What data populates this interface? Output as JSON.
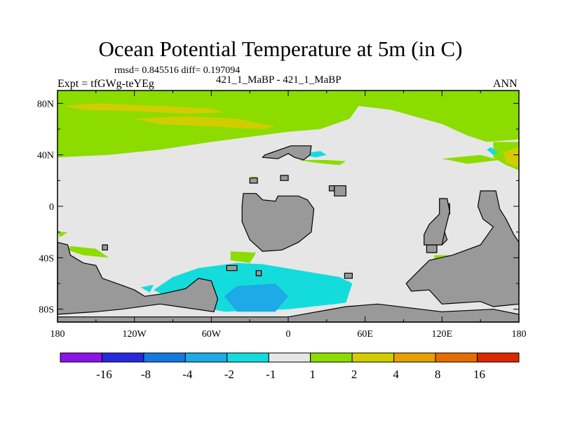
{
  "colors": {
    "land": "#999999",
    "near_zero": "#e6e6e6",
    "palette": [
      "#8c14e6",
      "#2828dc",
      "#1478dc",
      "#1eaae6",
      "#14dcdc",
      "#e6e6e6",
      "#8cdc00",
      "#d2cd00",
      "#e6a000",
      "#e66e00",
      "#dc2800"
    ]
  },
  "chart_data": {
    "type": "heatmap",
    "title": "Ocean Potential Temperature at 5m (in C)",
    "stats_line": "rmsd= 0.845516 diff= 0.197094",
    "subtitle": "421_1_MaBP - 421_1_MaBP",
    "left_label": "Expt = tfGWg-teYEg",
    "right_label": "ANN",
    "x_ticks": [
      {
        "value": -180,
        "label": "180"
      },
      {
        "value": -120,
        "label": "120W"
      },
      {
        "value": -60,
        "label": "60W"
      },
      {
        "value": 0,
        "label": "0"
      },
      {
        "value": 60,
        "label": "60E"
      },
      {
        "value": 120,
        "label": "120E"
      },
      {
        "value": 180,
        "label": "180"
      }
    ],
    "y_ticks": [
      {
        "value": 80,
        "label": "80N"
      },
      {
        "value": 40,
        "label": "40N"
      },
      {
        "value": 0,
        "label": "0"
      },
      {
        "value": -40,
        "label": "40S"
      },
      {
        "value": -80,
        "label": "80S"
      }
    ],
    "xlim": [
      -180,
      180
    ],
    "ylim": [
      -90,
      90
    ],
    "colorbar_levels": [
      "-16",
      "-8",
      "-4",
      "-2",
      "-1",
      "1",
      "2",
      "4",
      "8",
      "16"
    ],
    "regions": [
      {
        "name": "northern-band",
        "color_index": 6,
        "poly": [
          [
            -180,
            90
          ],
          [
            180,
            90
          ],
          [
            180,
            52
          ],
          [
            155,
            50
          ],
          [
            140,
            55
          ],
          [
            120,
            64
          ],
          [
            80,
            75
          ],
          [
            55,
            78
          ],
          [
            48,
            68
          ],
          [
            25,
            60
          ],
          [
            0,
            58
          ],
          [
            -30,
            54
          ],
          [
            -60,
            50
          ],
          [
            -100,
            44
          ],
          [
            -140,
            40
          ],
          [
            -180,
            38
          ]
        ]
      },
      {
        "name": "north-pacific-warm-1",
        "color_index": 7,
        "poly": [
          [
            -175,
            78
          ],
          [
            -150,
            80
          ],
          [
            -100,
            78
          ],
          [
            -60,
            76
          ],
          [
            -50,
            73
          ],
          [
            -80,
            72
          ],
          [
            -120,
            74
          ],
          [
            -160,
            75
          ]
        ]
      },
      {
        "name": "north-pacific-warm-2",
        "color_index": 7,
        "poly": [
          [
            -120,
            68
          ],
          [
            -80,
            70
          ],
          [
            -40,
            68
          ],
          [
            -10,
            62
          ],
          [
            -20,
            60
          ],
          [
            -60,
            62
          ],
          [
            -100,
            64
          ]
        ]
      },
      {
        "name": "east-margin-green",
        "color_index": 6,
        "poly": [
          [
            160,
            50
          ],
          [
            180,
            50
          ],
          [
            180,
            28
          ],
          [
            170,
            32
          ],
          [
            160,
            38
          ]
        ]
      },
      {
        "name": "east-margin-yellow",
        "color_index": 7,
        "poly": [
          [
            168,
            42
          ],
          [
            180,
            46
          ],
          [
            180,
            30
          ],
          [
            170,
            34
          ]
        ]
      },
      {
        "name": "north-cyan-1",
        "color_index": 4,
        "poly": [
          [
            158,
            46
          ],
          [
            164,
            42
          ],
          [
            160,
            40
          ],
          [
            155,
            44
          ]
        ]
      },
      {
        "name": "north-cyan-2",
        "color_index": 4,
        "poly": [
          [
            18,
            42
          ],
          [
            25,
            43
          ],
          [
            30,
            40
          ],
          [
            22,
            38
          ],
          [
            16,
            39
          ]
        ]
      },
      {
        "name": "north-green-strip",
        "color_index": 6,
        "poly": [
          [
            8,
            36
          ],
          [
            30,
            36
          ],
          [
            45,
            35
          ],
          [
            40,
            32
          ],
          [
            20,
            34
          ]
        ]
      },
      {
        "name": "north-green-strip-2",
        "color_index": 6,
        "poly": [
          [
            120,
            37
          ],
          [
            150,
            40
          ],
          [
            165,
            36
          ],
          [
            140,
            33
          ]
        ]
      },
      {
        "name": "north-green-dot",
        "color_index": 6,
        "poly": [
          [
            -30,
            23
          ],
          [
            -24,
            23
          ],
          [
            -26,
            21
          ]
        ]
      },
      {
        "name": "south-pacific-green-1",
        "color_index": 6,
        "poly": [
          [
            -180,
            -20
          ],
          [
            -172,
            -20
          ],
          [
            -178,
            -24
          ]
        ]
      },
      {
        "name": "south-pacific-green-2",
        "color_index": 6,
        "poly": [
          [
            -170,
            -31
          ],
          [
            -150,
            -33
          ],
          [
            -140,
            -40
          ],
          [
            -160,
            -38
          ],
          [
            -172,
            -34
          ]
        ]
      },
      {
        "name": "south-atlantic-green",
        "color_index": 6,
        "poly": [
          [
            -45,
            -35
          ],
          [
            -25,
            -36
          ],
          [
            -30,
            -44
          ],
          [
            -45,
            -42
          ]
        ]
      },
      {
        "name": "south-east-green",
        "color_index": 6,
        "poly": [
          [
            114,
            -38
          ],
          [
            126,
            -38
          ],
          [
            122,
            -45
          ],
          [
            114,
            -45
          ]
        ]
      },
      {
        "name": "southern-ocean-cyan",
        "color_index": 4,
        "poly": [
          [
            -70,
            -48
          ],
          [
            -40,
            -44
          ],
          [
            -20,
            -45
          ],
          [
            10,
            -50
          ],
          [
            40,
            -55
          ],
          [
            50,
            -60
          ],
          [
            45,
            -75
          ],
          [
            0,
            -80
          ],
          [
            -50,
            -82
          ],
          [
            -85,
            -75
          ],
          [
            -105,
            -65
          ],
          [
            -90,
            -55
          ]
        ]
      },
      {
        "name": "southern-ocean-blue",
        "color_index": 3,
        "poly": [
          [
            -40,
            -62
          ],
          [
            -10,
            -60
          ],
          [
            0,
            -70
          ],
          [
            -10,
            -82
          ],
          [
            -40,
            -82
          ],
          [
            -50,
            -70
          ]
        ]
      },
      {
        "name": "south-cyan-small",
        "color_index": 4,
        "poly": [
          [
            -115,
            -63
          ],
          [
            -105,
            -61
          ],
          [
            -108,
            -67
          ]
        ]
      },
      {
        "name": "south-cyan-small-2",
        "color_index": 4,
        "poly": [
          [
            42,
            -60
          ],
          [
            48,
            -58
          ],
          [
            47,
            -65
          ]
        ]
      }
    ],
    "land": [
      {
        "name": "north-landmass",
        "poly": [
          [
            -18,
            40
          ],
          [
            2,
            47
          ],
          [
            18,
            47
          ],
          [
            17,
            40
          ],
          [
            12,
            36
          ],
          [
            5,
            38
          ],
          [
            0,
            41
          ],
          [
            -8,
            37
          ],
          [
            -20,
            38
          ]
        ]
      },
      {
        "name": "small-island-1",
        "poly": [
          [
            -30,
            22
          ],
          [
            -24,
            22
          ],
          [
            -24,
            18
          ],
          [
            -30,
            18
          ]
        ]
      },
      {
        "name": "small-island-2",
        "poly": [
          [
            -6,
            24
          ],
          [
            0,
            24
          ],
          [
            0,
            20
          ],
          [
            -6,
            20
          ]
        ]
      },
      {
        "name": "small-island-3",
        "poly": [
          [
            32,
            16
          ],
          [
            36,
            16
          ],
          [
            36,
            12
          ],
          [
            32,
            12
          ]
        ]
      },
      {
        "name": "island-chain",
        "poly": [
          [
            36,
            16
          ],
          [
            45,
            16
          ],
          [
            45,
            8
          ],
          [
            36,
            8
          ]
        ]
      },
      {
        "name": "africa-like",
        "poly": [
          [
            -35,
            10
          ],
          [
            -25,
            10
          ],
          [
            -20,
            5
          ],
          [
            -10,
            4
          ],
          [
            -8,
            8
          ],
          [
            8,
            8
          ],
          [
            15,
            5
          ],
          [
            20,
            -2
          ],
          [
            18,
            -20
          ],
          [
            8,
            -28
          ],
          [
            -5,
            -34
          ],
          [
            -20,
            -35
          ],
          [
            -30,
            -26
          ],
          [
            -36,
            -12
          ],
          [
            -36,
            0
          ]
        ]
      },
      {
        "name": "island-small-4",
        "poly": [
          [
            -145,
            -30
          ],
          [
            -141,
            -30
          ],
          [
            -141,
            -34
          ],
          [
            -145,
            -34
          ]
        ]
      },
      {
        "name": "southwest-land",
        "poly": [
          [
            -180,
            -28
          ],
          [
            -172,
            -30
          ],
          [
            -170,
            -38
          ],
          [
            -160,
            -44
          ],
          [
            -150,
            -46
          ],
          [
            -145,
            -56
          ],
          [
            -128,
            -62
          ],
          [
            -120,
            -65
          ],
          [
            -112,
            -70
          ],
          [
            -98,
            -68
          ],
          [
            -80,
            -64
          ],
          [
            -70,
            -56
          ],
          [
            -60,
            -58
          ],
          [
            -55,
            -72
          ],
          [
            -58,
            -82
          ],
          [
            -100,
            -76
          ],
          [
            -130,
            -80
          ],
          [
            -150,
            -82
          ],
          [
            -180,
            -84
          ]
        ]
      },
      {
        "name": "antarctic-strip",
        "poly": [
          [
            -180,
            -90
          ],
          [
            180,
            -90
          ],
          [
            180,
            -84
          ],
          [
            160,
            -80
          ],
          [
            120,
            -82
          ],
          [
            70,
            -76
          ],
          [
            45,
            -78
          ],
          [
            0,
            -86
          ],
          [
            -60,
            -86
          ],
          [
            -150,
            -86
          ],
          [
            -180,
            -86
          ]
        ]
      },
      {
        "name": "south-island-1",
        "poly": [
          [
            -48,
            -46
          ],
          [
            -40,
            -46
          ],
          [
            -40,
            -50
          ],
          [
            -48,
            -50
          ]
        ]
      },
      {
        "name": "south-island-2",
        "poly": [
          [
            -25,
            -50
          ],
          [
            -21,
            -50
          ],
          [
            -21,
            -54
          ],
          [
            -25,
            -54
          ]
        ]
      },
      {
        "name": "south-island-3",
        "poly": [
          [
            44,
            -52
          ],
          [
            50,
            -52
          ],
          [
            50,
            -56
          ],
          [
            44,
            -56
          ]
        ]
      },
      {
        "name": "southeast-land",
        "poly": [
          [
            180,
            -28
          ],
          [
            176,
            -22
          ],
          [
            170,
            -10
          ],
          [
            165,
            -2
          ],
          [
            162,
            12
          ],
          [
            150,
            12
          ],
          [
            148,
            0
          ],
          [
            152,
            -10
          ],
          [
            160,
            -16
          ],
          [
            150,
            -30
          ],
          [
            128,
            -38
          ],
          [
            110,
            -42
          ],
          [
            100,
            -52
          ],
          [
            92,
            -60
          ],
          [
            96,
            -66
          ],
          [
            110,
            -65
          ],
          [
            120,
            -76
          ],
          [
            150,
            -74
          ],
          [
            160,
            -78
          ],
          [
            180,
            -76
          ]
        ]
      },
      {
        "name": "east-island-1",
        "poly": [
          [
            108,
            -30
          ],
          [
            116,
            -30
          ],
          [
            116,
            -36
          ],
          [
            108,
            -36
          ]
        ]
      },
      {
        "name": "east-mainland-edge",
        "poly": [
          [
            120,
            -30
          ],
          [
            124,
            -26
          ],
          [
            122,
            -20
          ],
          [
            118,
            -26
          ]
        ]
      },
      {
        "name": "south-east-cape",
        "poly": [
          [
            122,
            2
          ],
          [
            126,
            2
          ],
          [
            126,
            -6
          ],
          [
            122,
            -6
          ]
        ]
      },
      {
        "name": "east-thin-land",
        "poly": [
          [
            106,
            -30
          ],
          [
            120,
            -30
          ],
          [
            122,
            -20
          ],
          [
            126,
            -4
          ],
          [
            124,
            6
          ],
          [
            118,
            6
          ],
          [
            118,
            -6
          ],
          [
            110,
            -14
          ],
          [
            106,
            -22
          ]
        ]
      }
    ]
  }
}
